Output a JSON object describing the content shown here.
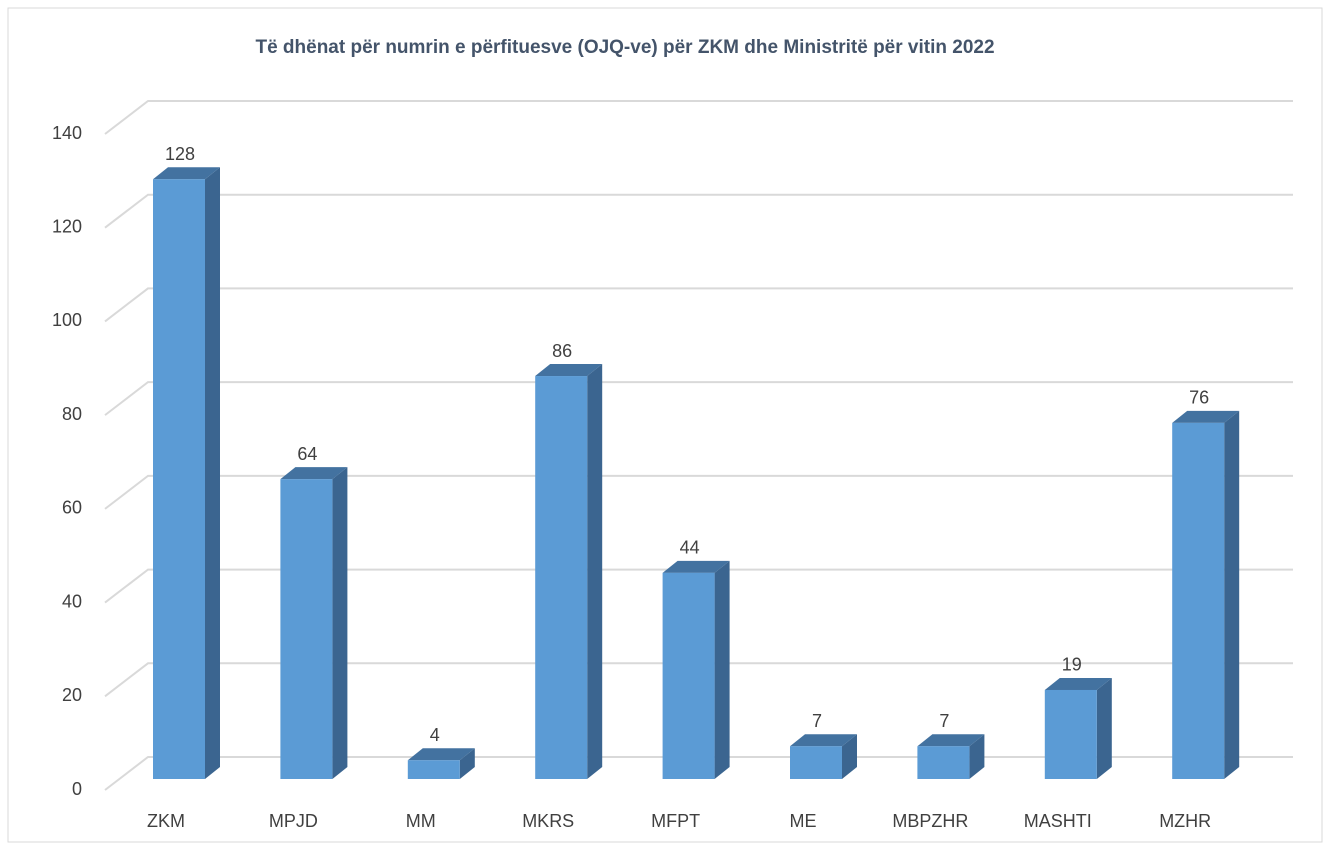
{
  "chart_data": {
    "type": "bar",
    "title": "Të dhënat për numrin e përfituesve (OJQ-ve) për ZKM dhe Ministritë për vitin 2022",
    "categories": [
      "ZKM",
      "MPJD",
      "MM",
      "MKRS",
      "MFPT",
      "ME",
      "MBPZHR",
      "MASHTI",
      "MZHR"
    ],
    "values": [
      128,
      64,
      4,
      86,
      44,
      7,
      7,
      19,
      76
    ],
    "color": "#5b9bd5",
    "ylim": [
      0,
      140
    ],
    "yticks": [
      0,
      20,
      40,
      60,
      80,
      100,
      120,
      140
    ],
    "grid": true
  }
}
